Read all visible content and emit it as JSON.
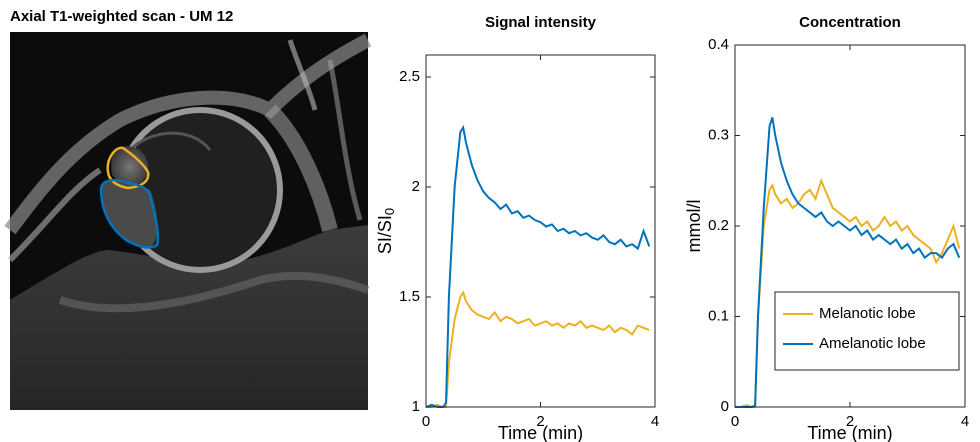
{
  "image_panel": {
    "title": "Axial T1-weighted scan - UM 12"
  },
  "chart_data": [
    {
      "type": "line",
      "title": "Signal intensity",
      "xlabel": "Time (min)",
      "ylabel": "SI/SI",
      "ylabel_subscript": "0",
      "x": [
        0,
        0.1,
        0.2,
        0.3,
        0.35,
        0.4,
        0.5,
        0.6,
        0.65,
        0.7,
        0.8,
        0.9,
        1.0,
        1.1,
        1.2,
        1.3,
        1.4,
        1.5,
        1.6,
        1.7,
        1.8,
        1.9,
        2.0,
        2.1,
        2.2,
        2.3,
        2.4,
        2.5,
        2.6,
        2.7,
        2.8,
        2.9,
        3.0,
        3.1,
        3.2,
        3.3,
        3.4,
        3.5,
        3.6,
        3.7,
        3.8,
        3.9
      ],
      "series": [
        {
          "color": "#EDB120",
          "values": [
            1.0,
            1.0,
            1.01,
            1.0,
            1.0,
            1.2,
            1.4,
            1.5,
            1.52,
            1.48,
            1.44,
            1.42,
            1.41,
            1.4,
            1.43,
            1.39,
            1.41,
            1.4,
            1.38,
            1.39,
            1.4,
            1.37,
            1.38,
            1.39,
            1.37,
            1.38,
            1.36,
            1.38,
            1.37,
            1.39,
            1.36,
            1.37,
            1.36,
            1.35,
            1.37,
            1.34,
            1.36,
            1.35,
            1.33,
            1.37,
            1.36,
            1.35
          ]
        },
        {
          "color": "#0072BD",
          "values": [
            1.0,
            1.01,
            1.0,
            1.0,
            1.02,
            1.5,
            2.0,
            2.25,
            2.27,
            2.2,
            2.1,
            2.03,
            1.98,
            1.95,
            1.93,
            1.9,
            1.92,
            1.88,
            1.89,
            1.86,
            1.87,
            1.85,
            1.84,
            1.82,
            1.83,
            1.8,
            1.81,
            1.79,
            1.8,
            1.78,
            1.79,
            1.77,
            1.76,
            1.78,
            1.75,
            1.74,
            1.76,
            1.73,
            1.74,
            1.72,
            1.8,
            1.73
          ]
        }
      ],
      "xlim": [
        0,
        4
      ],
      "xticks": [
        0,
        2,
        4
      ],
      "ylim": [
        1,
        2.6
      ],
      "yticks": [
        1,
        1.5,
        2,
        2.5
      ]
    },
    {
      "type": "line",
      "title": "Concentration",
      "xlabel": "Time (min)",
      "ylabel": "mmol/l",
      "x": [
        0,
        0.1,
        0.2,
        0.3,
        0.35,
        0.4,
        0.5,
        0.6,
        0.65,
        0.7,
        0.8,
        0.9,
        1.0,
        1.1,
        1.2,
        1.3,
        1.4,
        1.5,
        1.6,
        1.7,
        1.8,
        1.9,
        2.0,
        2.1,
        2.2,
        2.3,
        2.4,
        2.5,
        2.6,
        2.7,
        2.8,
        2.9,
        3.0,
        3.1,
        3.2,
        3.3,
        3.4,
        3.5,
        3.6,
        3.7,
        3.8,
        3.9
      ],
      "series": [
        {
          "name": "Melanotic lobe",
          "color": "#EDB120",
          "values": [
            0,
            0,
            0.002,
            0,
            0,
            0.1,
            0.2,
            0.24,
            0.245,
            0.235,
            0.225,
            0.23,
            0.22,
            0.225,
            0.235,
            0.24,
            0.23,
            0.25,
            0.235,
            0.22,
            0.215,
            0.21,
            0.205,
            0.21,
            0.2,
            0.205,
            0.195,
            0.2,
            0.21,
            0.2,
            0.205,
            0.195,
            0.2,
            0.19,
            0.185,
            0.18,
            0.175,
            0.16,
            0.17,
            0.185,
            0.2,
            0.175
          ]
        },
        {
          "name": "Amelanotic lobe",
          "color": "#0072BD",
          "values": [
            0,
            0,
            0,
            0,
            0.002,
            0.1,
            0.22,
            0.31,
            0.32,
            0.3,
            0.27,
            0.25,
            0.235,
            0.225,
            0.22,
            0.215,
            0.21,
            0.215,
            0.205,
            0.2,
            0.205,
            0.2,
            0.195,
            0.2,
            0.19,
            0.195,
            0.185,
            0.19,
            0.185,
            0.18,
            0.185,
            0.175,
            0.18,
            0.17,
            0.175,
            0.165,
            0.17,
            0.17,
            0.165,
            0.175,
            0.18,
            0.165
          ]
        }
      ],
      "xlim": [
        0,
        4
      ],
      "xticks": [
        0,
        2,
        4
      ],
      "ylim": [
        0,
        0.4
      ],
      "yticks": [
        0,
        0.1,
        0.2,
        0.3,
        0.4
      ],
      "legend": "lower right"
    }
  ]
}
